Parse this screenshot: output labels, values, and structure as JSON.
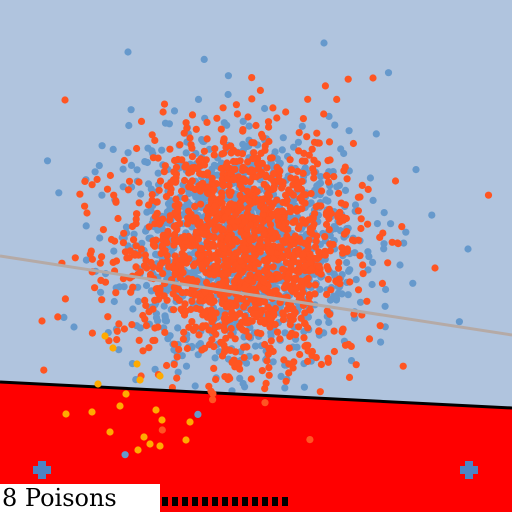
{
  "hud": {
    "poison_label": "8 Poisons"
  },
  "colors": {
    "background": "#b0c4de",
    "danger_zone": "#ff0000",
    "boundary_line": "#000000",
    "classifier_line": "#b5aaa6",
    "blue_point": "#6699cc",
    "orange_point": "#ff5522",
    "poison_point": "#ffaa00",
    "plus_marker": "#4d84c4",
    "dash_marker": "#000000"
  },
  "icons": [
    "plus-icon",
    "plus-icon"
  ]
}
